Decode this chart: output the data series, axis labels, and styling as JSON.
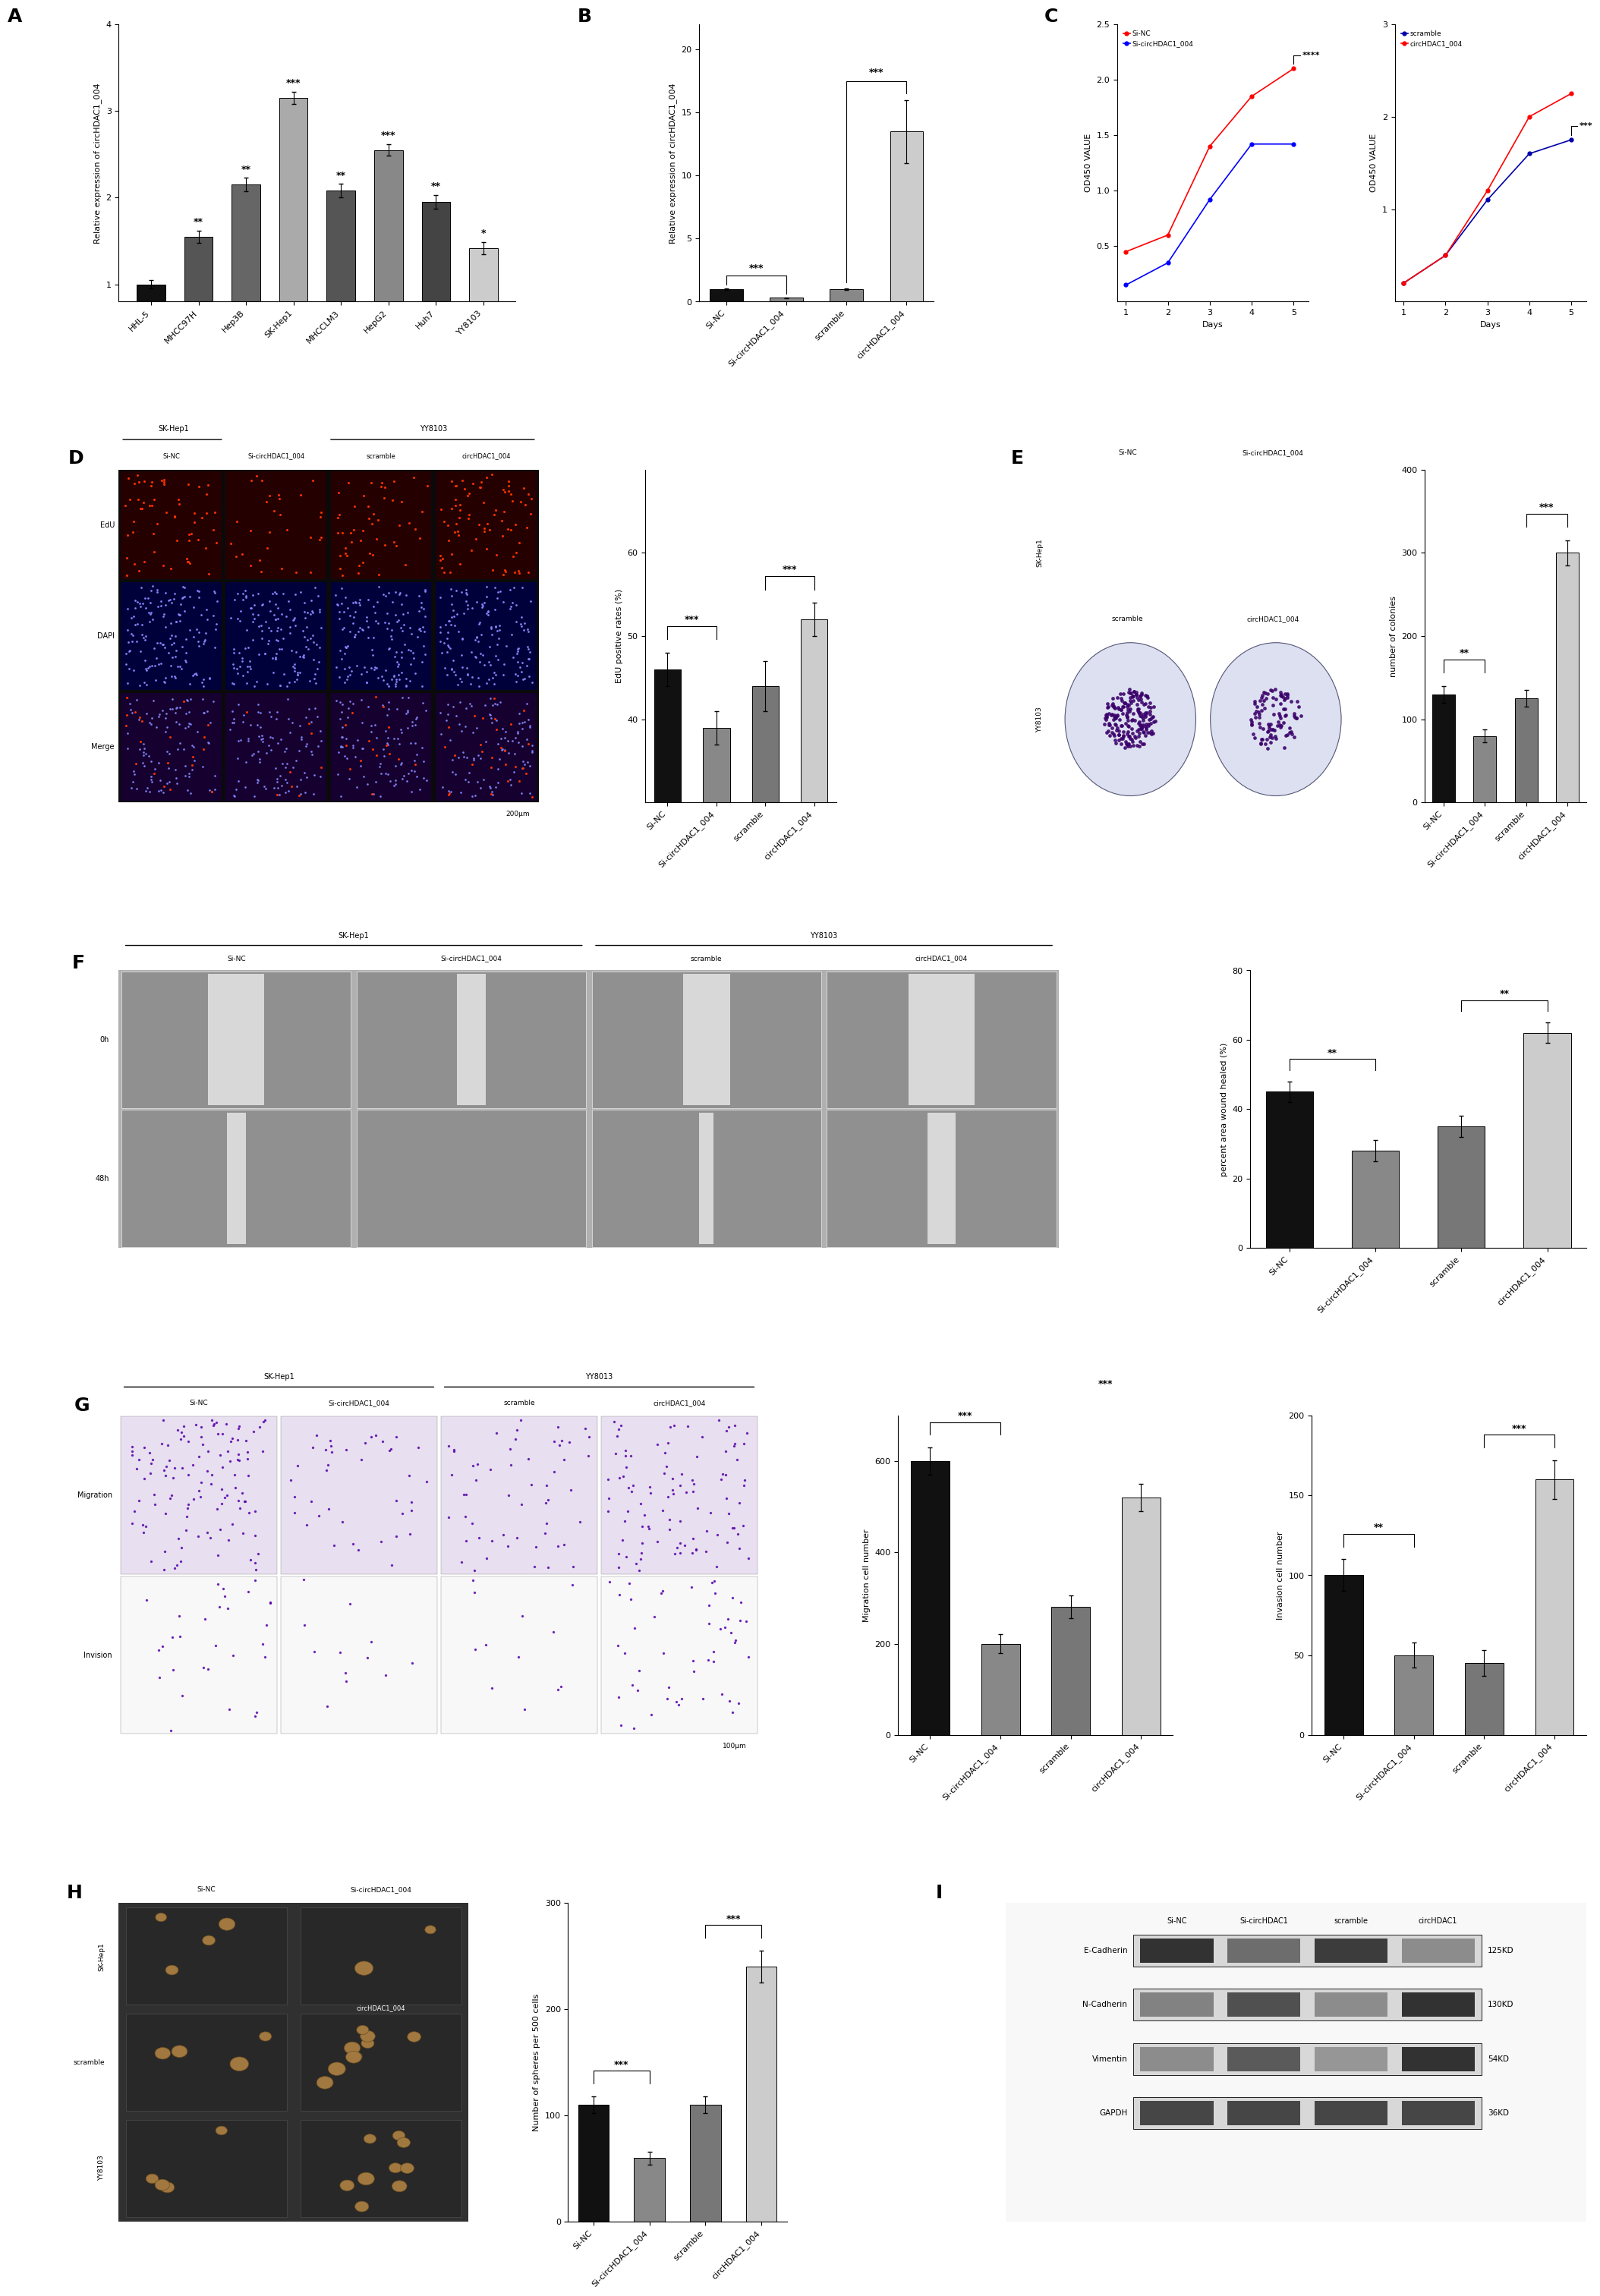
{
  "panel_A": {
    "categories": [
      "HHL-5",
      "MHCC97H",
      "Hep3B",
      "SK-Hep1",
      "MHCCLM3",
      "HepG2",
      "Huh7",
      "YY8103"
    ],
    "values": [
      1.0,
      1.55,
      2.15,
      3.15,
      2.08,
      2.55,
      1.95,
      1.42
    ],
    "errors": [
      0.05,
      0.07,
      0.08,
      0.07,
      0.08,
      0.07,
      0.08,
      0.07
    ],
    "sig": [
      "",
      "**",
      "**",
      "***",
      "**",
      "***",
      "**",
      "*"
    ],
    "colors": [
      "#111111",
      "#555555",
      "#666666",
      "#aaaaaa",
      "#555555",
      "#888888",
      "#444444",
      "#cccccc"
    ],
    "ylabel": "Relative expression of circHDAC1_004",
    "ylim": [
      0.8,
      3.7
    ],
    "yticks": [
      1,
      2,
      3,
      4
    ]
  },
  "panel_B": {
    "categories": [
      "Si-NC",
      "Si-circHDAC1_004",
      "scramble",
      "circHDAC1_004"
    ],
    "values": [
      1.0,
      0.3,
      1.0,
      13.5
    ],
    "errors": [
      0.05,
      0.05,
      0.06,
      2.5
    ],
    "colors": [
      "#111111",
      "#888888",
      "#888888",
      "#cccccc"
    ],
    "ylabel": "Relative expression of circHDAC1_004",
    "ylim": [
      0,
      22
    ],
    "yticks": [
      0,
      5,
      10,
      15,
      20
    ],
    "sig_line1": [
      0,
      1,
      2.1,
      "***"
    ],
    "sig_line2": [
      2,
      3,
      17.5,
      "***"
    ]
  },
  "panel_C_left": {
    "days": [
      1,
      2,
      3,
      4,
      5
    ],
    "Si_NC": [
      0.45,
      0.6,
      1.4,
      1.85,
      2.1
    ],
    "Si_circ": [
      0.15,
      0.35,
      0.92,
      1.42,
      1.42
    ],
    "xlabel": "Days",
    "ylabel": "OD450 VALUE",
    "ylim": [
      0.0,
      2.5
    ],
    "yticks": [
      0.5,
      1.0,
      1.5,
      2.0,
      2.5
    ],
    "color_SiNC": "#ff0000",
    "color_Scirc": "#0000ff",
    "legend": [
      "Si-NC",
      "Si-circHDAC1_004"
    ],
    "sig_label": "****"
  },
  "panel_C_right": {
    "days": [
      1,
      2,
      3,
      4,
      5
    ],
    "scramble": [
      0.2,
      0.5,
      1.1,
      1.6,
      1.75
    ],
    "circHDAC1": [
      0.2,
      0.5,
      1.2,
      2.0,
      2.25
    ],
    "xlabel": "Days",
    "ylabel": "OD450 VALUE",
    "ylim": [
      0.0,
      3.0
    ],
    "yticks": [
      1.0,
      2.0,
      3.0
    ],
    "color_scramble": "#0000aa",
    "color_circ": "#ff0000",
    "legend": [
      "scramble",
      "circHDAC1_004"
    ],
    "sig_label": "***"
  },
  "panel_D_chart": {
    "categories": [
      "Si-NC",
      "Si-circHDAC1_004",
      "scramble",
      "circHDAC1_004"
    ],
    "values": [
      46,
      39,
      44,
      52
    ],
    "errors": [
      2.0,
      2.0,
      3.0,
      2.0
    ],
    "colors": [
      "#111111",
      "#888888",
      "#777777",
      "#cccccc"
    ],
    "ylabel": "EdU positive rates (%)",
    "ylim": [
      30,
      70
    ],
    "yticks": [
      40,
      50,
      60
    ],
    "sig_pairs": [
      [
        "Si-NC",
        "Si-circHDAC1_004",
        "***"
      ],
      [
        "scramble",
        "circHDAC1_004",
        "***"
      ]
    ]
  },
  "panel_E_chart": {
    "categories": [
      "Si-NC",
      "Si-circHDAC1_004",
      "scramble",
      "circHDAC1_004"
    ],
    "values": [
      130,
      80,
      125,
      300
    ],
    "errors": [
      10,
      8,
      10,
      15
    ],
    "colors": [
      "#111111",
      "#888888",
      "#777777",
      "#cccccc"
    ],
    "ylabel": "number of colonies",
    "ylim": [
      0,
      400
    ],
    "yticks": [
      0,
      100,
      200,
      300,
      400
    ],
    "sig_pairs": [
      [
        "Si-NC",
        "Si-circHDAC1_004",
        "**"
      ],
      [
        "scramble",
        "circHDAC1_004",
        "***"
      ]
    ]
  },
  "panel_F_chart": {
    "categories": [
      "Si-NC",
      "Si-circHDAC1_004",
      "scramble",
      "circHDAC1_004"
    ],
    "values": [
      45,
      28,
      35,
      62
    ],
    "errors": [
      3,
      3,
      3,
      3
    ],
    "colors": [
      "#111111",
      "#888888",
      "#777777",
      "#cccccc"
    ],
    "ylabel": "percent area wound healed (%)",
    "ylim": [
      0,
      80
    ],
    "yticks": [
      0,
      20,
      40,
      60,
      80
    ],
    "sig_pairs": [
      [
        "Si-NC",
        "Si-circHDAC1_004",
        "**"
      ],
      [
        "scramble",
        "circHDAC1_004",
        "**"
      ]
    ]
  },
  "panel_G_migration": {
    "categories": [
      "Si-NC",
      "Si-circHDAC1_004",
      "scramble",
      "circHDAC1_004"
    ],
    "values": [
      600,
      200,
      280,
      520
    ],
    "errors": [
      30,
      20,
      25,
      30
    ],
    "colors": [
      "#111111",
      "#888888",
      "#777777",
      "#cccccc"
    ],
    "ylabel": "Migration cell number",
    "ylim": [
      0,
      700
    ],
    "yticks": [
      0,
      200,
      400,
      600
    ],
    "sig_pairs": [
      [
        "Si-NC",
        "Si-circHDAC1_004",
        "***"
      ],
      [
        "scramble",
        "circHDAC1_004",
        "***"
      ]
    ]
  },
  "panel_G_invasion": {
    "categories": [
      "Si-NC",
      "Si-circHDAC1_004",
      "scramble",
      "circHDAC1_004"
    ],
    "values": [
      100,
      50,
      45,
      160
    ],
    "errors": [
      10,
      8,
      8,
      12
    ],
    "colors": [
      "#111111",
      "#888888",
      "#777777",
      "#cccccc"
    ],
    "ylabel": "Invasion cell number",
    "ylim": [
      0,
      200
    ],
    "yticks": [
      0,
      50,
      100,
      150,
      200
    ],
    "sig_pairs": [
      [
        "Si-NC",
        "Si-circHDAC1_004",
        "**"
      ],
      [
        "scramble",
        "circHDAC1_004",
        "***"
      ]
    ]
  },
  "panel_H_chart": {
    "categories": [
      "Si-NC",
      "Si-circHDAC1_004",
      "scramble",
      "circHDAC1_004"
    ],
    "values": [
      110,
      60,
      110,
      240
    ],
    "errors": [
      8,
      6,
      8,
      15
    ],
    "colors": [
      "#111111",
      "#888888",
      "#777777",
      "#cccccc"
    ],
    "ylabel": "Number of spheres per 500 cells",
    "ylim": [
      0,
      300
    ],
    "yticks": [
      0,
      100,
      200,
      300
    ],
    "sig_pairs": [
      [
        "Si-NC",
        "Si-circHDAC1_004",
        "***"
      ],
      [
        "scramble",
        "circHDAC1_004",
        "***"
      ]
    ]
  },
  "panel_I_labels": {
    "proteins": [
      "E-Cadherin",
      "N-Cadherin",
      "Vimentin",
      "GAPDH"
    ],
    "sizes": [
      "125KD",
      "130KD",
      "54KD",
      "36KD"
    ],
    "conditions": [
      "Si-NC",
      "Si-circHDAC1",
      "scramble",
      "circHDAC1"
    ]
  },
  "label_fontsize": 16,
  "tick_fontsize": 8,
  "axis_label_fontsize": 8,
  "sig_fontsize": 8,
  "background_color": "#ffffff"
}
